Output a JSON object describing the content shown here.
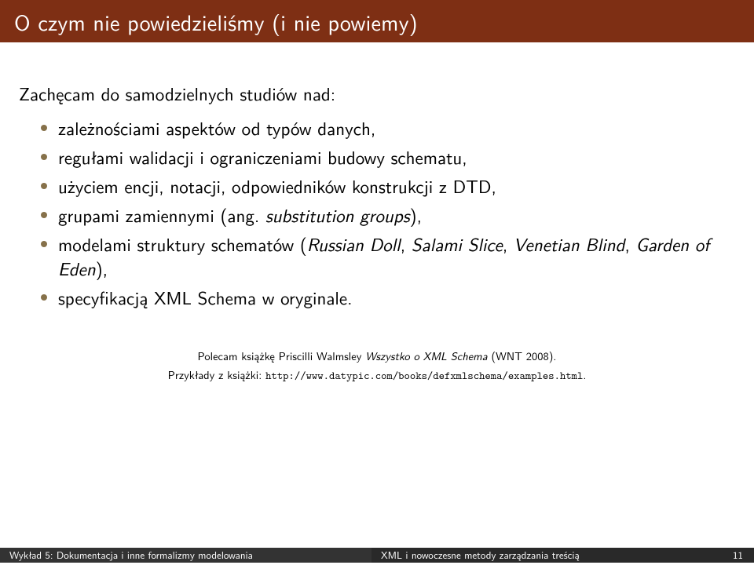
{
  "colors": {
    "title_bg": "#7e2f14",
    "title_fg": "#ffffff",
    "bullet": "#86714a",
    "footer_left_bg": "#333333",
    "footer_right_bg": "#292929",
    "footer_fg": "#ffffff"
  },
  "title": "O czym nie powiedzieliśmy (i nie powiemy)",
  "intro": "Zachęcam do samodzielnych studiów nad:",
  "bullets": [
    {
      "html": "zależnościami aspektów od typów danych,"
    },
    {
      "html": "regułami walidacji i ograniczeniami budowy schematu,"
    },
    {
      "html": "użyciem encji, notacji, odpowiedników konstrukcji z DTD,"
    },
    {
      "html": "grupami zamiennymi (ang. <span class=\"ital\">substitution groups</span>),"
    },
    {
      "html": "modelami struktury schematów (<span class=\"ital\">Russian Doll</span>, <span class=\"ital\">Salami Slice</span>, <span class=\"ital\">Venetian Blind</span>, <span class=\"ital\">Garden of Eden</span>),"
    },
    {
      "html": "specyfikacją XML Schema w oryginale."
    }
  ],
  "refs": {
    "line1_pre": "Polecam książkę Priscilli Walmsley ",
    "line1_ital": "Wszystko o XML Schema",
    "line1_post": " (WNT 2008).",
    "line2_pre": "Przykłady z książki: ",
    "line2_tt": "http://www.datypic.com/books/defxmlschema/examples.html",
    "line2_post": "."
  },
  "footer": {
    "left": "Wykład 5: Dokumentacja i inne formalizmy modelowania",
    "right_text": "XML i nowoczesne metody zarządzania treścią",
    "page": "11"
  },
  "fonts": {
    "title_size": 28,
    "body_size": 23,
    "refs_size": 14.5,
    "footer_size": 13
  }
}
